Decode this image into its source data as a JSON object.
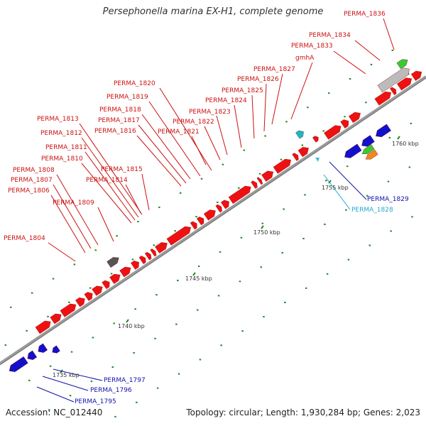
{
  "title": "Persephonella marina EX-H1, complete genome",
  "accession_label": "Accession: NC_012440",
  "topology_label": "Topology: circular; Length: 1,930,284 bp; Genes: 2,023",
  "colors": {
    "backbone": "#9a9a9a",
    "gene_forward_red": "#ee1111",
    "gene_reverse_blue": "#1111cc",
    "trna_cyan": "#11bbcc",
    "rrna_green": "#33cc33",
    "rrna_orange": "#ee8822",
    "gray_feature": "#bbbbbb",
    "dark_feature": "#555555",
    "tick_green": "#228822",
    "label_red": "#cc1111",
    "label_blue": "#1111aa",
    "label_cyan": "#22aacc"
  },
  "kbp_labels": [
    "1735 kbp",
    "1740 kbp",
    "1745 kbp",
    "1750 kbp",
    "1755 kbp",
    "1760 kbp"
  ],
  "gene_labels": [
    "PERMA_1836",
    "PERMA_1834",
    "PERMA_1833",
    "gmhA",
    "PERMA_1827",
    "PERMA_1826",
    "PERMA_1825",
    "PERMA_1824",
    "PERMA_1823",
    "PERMA_1822",
    "PERMA_1821",
    "PERMA_1820",
    "PERMA_1819",
    "PERMA_1818",
    "PERMA_1817",
    "PERMA_1816",
    "PERMA_1815",
    "PERMA_1814",
    "PERMA_1813",
    "PERMA_1812",
    "PERMA_1811",
    "PERMA_1810",
    "PERMA_1809",
    "PERMA_1808",
    "PERMA_1807",
    "PERMA_1806",
    "PERMA_1804",
    "PERMA_1829",
    "PERMA_1828",
    "PERMA_1797",
    "PERMA_1796",
    "PERMA_1795"
  ]
}
